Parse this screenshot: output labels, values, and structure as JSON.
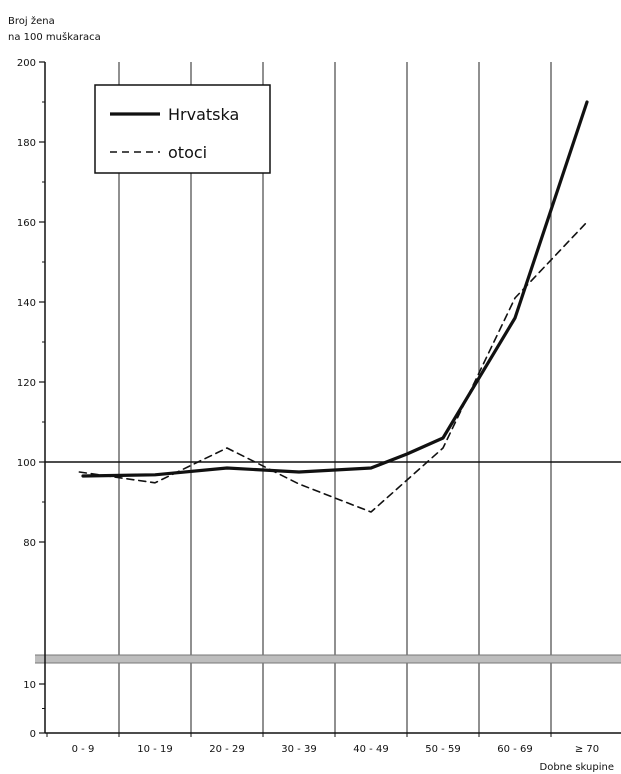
{
  "chart_data": {
    "type": "line",
    "ylabel": [
      "Broj žena",
      "na 100 muškaraca"
    ],
    "xlabel": "Dobne skupine",
    "categories": [
      "0 - 9",
      "10 - 19",
      "20 - 29",
      "30 - 39",
      "40 - 49",
      "50 - 59",
      "60 - 69",
      "≥ 70"
    ],
    "x": [
      0,
      1,
      2,
      3,
      4,
      5,
      6,
      7
    ],
    "series": [
      {
        "name": "Hrvatska",
        "style": "solid",
        "points": [
          [
            0,
            96.5
          ],
          [
            1,
            96.8
          ],
          [
            2,
            98.5
          ],
          [
            3,
            97.5
          ],
          [
            4,
            98.5
          ],
          [
            4.5,
            102
          ],
          [
            5,
            106
          ],
          [
            6,
            136
          ],
          [
            7,
            190
          ]
        ]
      },
      {
        "name": "otoci",
        "style": "dashed",
        "points": [
          [
            -0.05,
            97.5
          ],
          [
            1,
            94.8
          ],
          [
            2,
            103.5
          ],
          [
            3,
            94.5
          ],
          [
            4,
            87.5
          ],
          [
            5,
            103.5
          ],
          [
            6,
            141
          ],
          [
            7,
            160
          ]
        ]
      }
    ],
    "yticks": [
      0,
      10,
      80,
      100,
      120,
      140,
      160,
      180,
      200
    ],
    "ylim": [
      0,
      200
    ],
    "axis_break": [
      10,
      80
    ],
    "grid": true,
    "reference_line": 100,
    "legend_position": "top-left",
    "colors": {
      "line": "#111111",
      "grid": "#555555",
      "break_band": "#bdbdbd"
    }
  }
}
